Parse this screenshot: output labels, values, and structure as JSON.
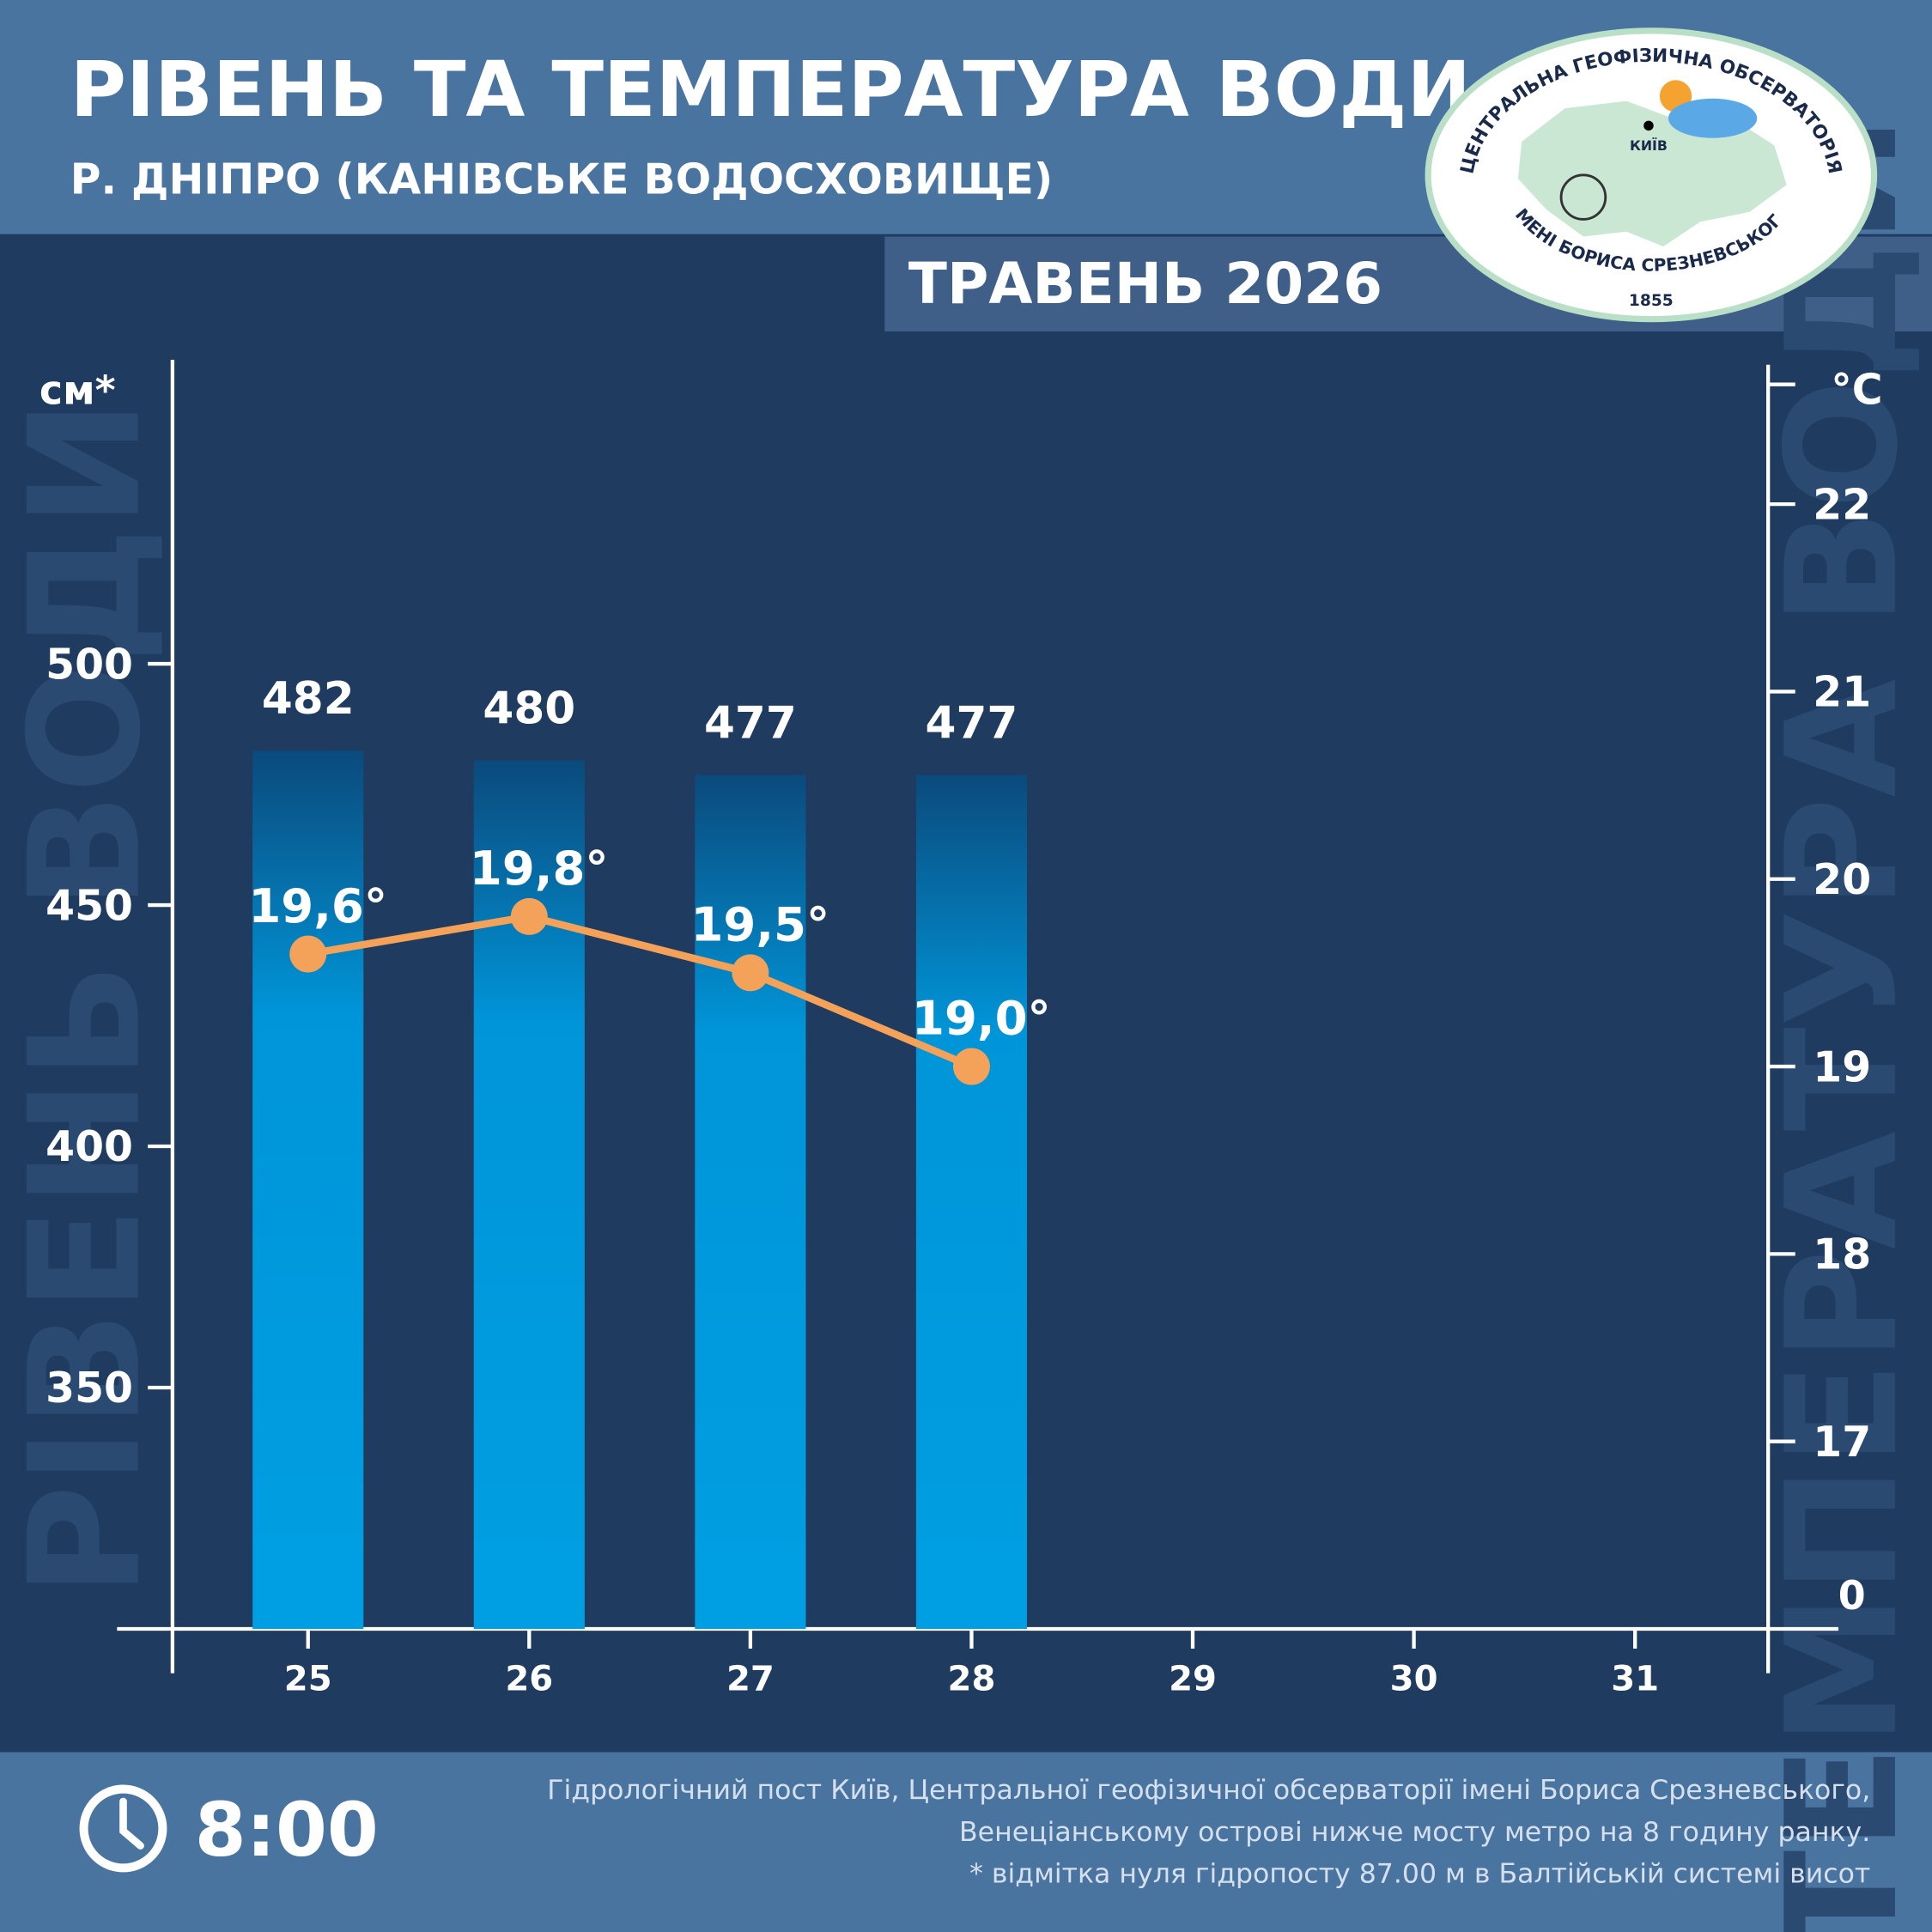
{
  "chart_data": {
    "type": "bar_line",
    "title": "РІВЕНЬ ТА ТЕМПЕРАТУРА ВОДИ",
    "subtitle": "Р. ДНІПРО (КАНІВСЬКЕ ВОДОСХОВИЩЕ)",
    "period": "ТРАВЕНЬ 2026",
    "ylabel": "см*",
    "y2label": "°C",
    "ywatermark": "РІВЕНЬ ВОДИ",
    "y2watermark": "ТЕМПЕРАТУРА ВОДИ",
    "categories": [
      "25",
      "26",
      "27",
      "28",
      "29",
      "30",
      "31"
    ],
    "series": [
      {
        "name": "Рівень води",
        "color": "#009fe3",
        "values": [
          482,
          480,
          477,
          477,
          null,
          null,
          null
        ]
      },
      {
        "name": "Температура води",
        "color": "#f4a259",
        "axis": "y2",
        "values": [
          19.6,
          19.8,
          19.5,
          19.0,
          null,
          null,
          null
        ],
        "value_labels": [
          "19,6°",
          "19,8°",
          "19,5°",
          "19,0°",
          null,
          null,
          null
        ]
      }
    ],
    "ylim": [
      300,
      563
    ],
    "yticks": [
      350,
      400,
      450,
      500
    ],
    "y2lim": [
      16,
      22.77
    ],
    "y2ticks": [
      17,
      18,
      19,
      20,
      21,
      22
    ],
    "y2_break_label": "0",
    "time": "8:00",
    "notes": [
      "Гідрологічний пост Київ, Центральної геофізичної обсерваторії імені Бориса Срезневського,",
      "Венеціанському острові нижче мосту метро  на 8 годину ранку.",
      "* відмітка нуля гідропосту 87.00 м в Балтійській системі висот"
    ],
    "logo": {
      "top": "ЦЕНТРАЛЬНА ГЕОФІЗИЧНА ОБСЕРВАТОРІЯ",
      "bottom": "ІМЕНІ БОРИСА СРЕЗНЕВСЬКОГО",
      "year": "1855",
      "city": "КИЇВ"
    }
  }
}
